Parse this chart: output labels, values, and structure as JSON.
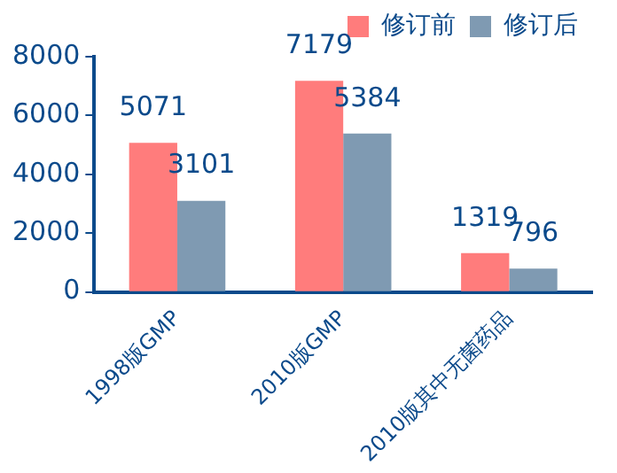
{
  "chart_data": {
    "type": "bar",
    "categories": [
      "1998版GMP",
      "2010版GMP",
      "2010版其中无菌药品"
    ],
    "series": [
      {
        "name": "修订前",
        "color": "#ff7c7c",
        "values": [
          5071,
          7179,
          1319
        ]
      },
      {
        "name": "修订后",
        "color": "#7f9ab2",
        "values": [
          3101,
          5384,
          796
        ]
      }
    ],
    "ylim": [
      0,
      8000
    ],
    "yticks": [
      0,
      2000,
      4000,
      6000,
      8000
    ],
    "grid": false,
    "legend": "top",
    "data_labels": true
  }
}
